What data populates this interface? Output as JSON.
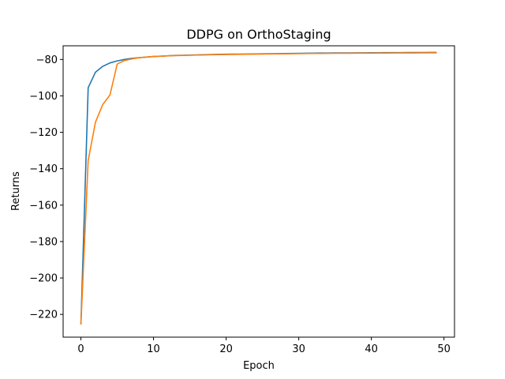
{
  "chart_data": {
    "type": "line",
    "title": "DDPG on OrthoStaging",
    "xlabel": "Epoch",
    "ylabel": "Returns",
    "xlim": [
      -2.45,
      51.45
    ],
    "ylim": [
      -232.5,
      -72.5
    ],
    "xticks": [
      0,
      10,
      20,
      30,
      40,
      50
    ],
    "yticks": [
      -220,
      -200,
      -180,
      -160,
      -140,
      -120,
      -100,
      -80
    ],
    "grid": false,
    "legend": "none",
    "series": [
      {
        "color": "#1f77b4",
        "x": [
          0,
          1,
          2,
          3,
          4,
          5,
          6,
          7,
          8,
          9,
          10,
          11,
          12,
          13,
          14,
          15,
          16,
          17,
          18,
          19,
          20,
          21,
          22,
          23,
          24,
          25,
          26,
          27,
          28,
          29,
          30,
          31,
          32,
          33,
          34,
          35,
          36,
          37,
          38,
          39,
          40,
          41,
          42,
          43,
          44,
          45,
          46,
          47,
          48,
          49
        ],
        "values": [
          -225.5,
          -95.5,
          -87,
          -83.8,
          -81.9,
          -80.8,
          -80.0,
          -79.4,
          -79.0,
          -78.7,
          -78.4,
          -78.2,
          -78.0,
          -77.8,
          -77.7,
          -77.6,
          -77.5,
          -77.4,
          -77.3,
          -77.2,
          -77.15,
          -77.1,
          -77.05,
          -77.0,
          -76.95,
          -76.9,
          -76.85,
          -76.8,
          -76.75,
          -76.7,
          -76.65,
          -76.6,
          -76.55,
          -76.5,
          -76.48,
          -76.45,
          -76.42,
          -76.4,
          -76.38,
          -76.35,
          -76.33,
          -76.3,
          -76.28,
          -76.26,
          -76.24,
          -76.22,
          -76.2,
          -76.18,
          -76.16,
          -76.15
        ]
      },
      {
        "color": "#ff7f0e",
        "x": [
          0,
          1,
          2,
          3,
          4,
          5,
          6,
          7,
          8,
          9,
          10,
          11,
          12,
          13,
          14,
          15,
          16,
          17,
          18,
          19,
          20,
          21,
          22,
          23,
          24,
          25,
          26,
          27,
          28,
          29,
          30,
          31,
          32,
          33,
          34,
          35,
          36,
          37,
          38,
          39,
          40,
          41,
          42,
          43,
          44,
          45,
          46,
          47,
          48,
          49
        ],
        "values": [
          -225.5,
          -135.5,
          -114.5,
          -104.8,
          -99.5,
          -82.5,
          -80.6,
          -79.7,
          -79.1,
          -78.7,
          -78.4,
          -78.2,
          -78.0,
          -77.9,
          -77.8,
          -77.7,
          -77.6,
          -77.5,
          -77.4,
          -77.35,
          -77.3,
          -77.25,
          -77.2,
          -77.15,
          -77.1,
          -77.05,
          -77.0,
          -76.95,
          -76.9,
          -76.85,
          -76.8,
          -76.75,
          -76.7,
          -76.68,
          -76.65,
          -76.62,
          -76.6,
          -76.58,
          -76.56,
          -76.54,
          -76.52,
          -76.5,
          -76.48,
          -76.46,
          -76.44,
          -76.42,
          -76.41,
          -76.4,
          -76.39,
          -76.38
        ]
      }
    ]
  }
}
